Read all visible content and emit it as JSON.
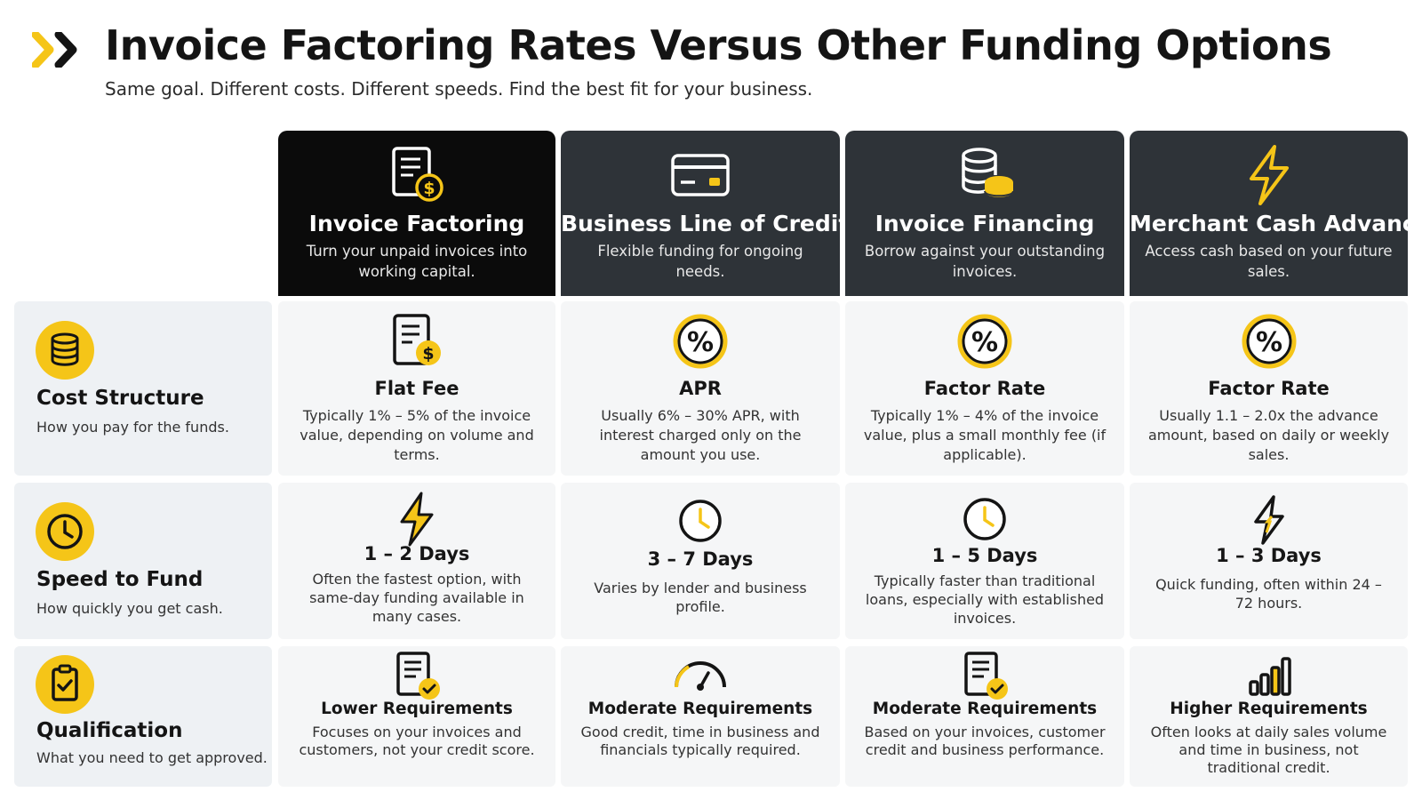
{
  "header": {
    "title": "Invoice Factoring Rates Versus Other Funding Options",
    "subtitle": "Same goal. Different costs. Different speeds. Find the best fit for your business."
  },
  "colors": {
    "accent": "#f5c518",
    "dark": "#2e3338",
    "black": "#0b0b0b",
    "cell": "#f5f6f7",
    "label": "#eef1f4"
  },
  "columns": [
    {
      "title": "Invoice Factoring",
      "desc": "Turn your unpaid invoices into working capital.",
      "icon": "invoice-dollar-icon"
    },
    {
      "title": "Business Line of Credit",
      "desc": "Flexible funding for ongoing needs.",
      "icon": "credit-card-icon"
    },
    {
      "title": "Invoice Financing",
      "desc": "Borrow against your outstanding invoices.",
      "icon": "coin-stack-icon"
    },
    {
      "title": "Merchant Cash Advance",
      "desc": "Access cash based on your future sales.",
      "icon": "lightning-icon"
    }
  ],
  "rows": [
    {
      "title": "Cost Structure",
      "desc": "How you pay for the funds.",
      "icon": "coins-icon",
      "cells": [
        {
          "title": "Flat Fee",
          "desc": "Typically 1% – 5% of the invoice value, depending on volume and terms.",
          "icon": "invoice-dollar-icon"
        },
        {
          "title": "APR",
          "desc": "Usually 6% – 30% APR, with interest charged only on the amount you use.",
          "icon": "percent-icon"
        },
        {
          "title": "Factor Rate",
          "desc": "Typically 1% – 4% of the invoice value, plus a small monthly fee (if applicable).",
          "icon": "percent-icon"
        },
        {
          "title": "Factor Rate",
          "desc": "Usually 1.1 – 2.0x the advance amount, based on daily or weekly sales.",
          "icon": "percent-icon"
        }
      ]
    },
    {
      "title": "Speed to Fund",
      "desc": "How quickly you get cash.",
      "icon": "clock-icon",
      "cells": [
        {
          "title": "1 – 2 Days",
          "desc": "Often the fastest option, with same-day funding available in many cases.",
          "icon": "lightning-icon"
        },
        {
          "title": "3 – 7 Days",
          "desc": "Varies by lender and business profile.",
          "icon": "clock-icon"
        },
        {
          "title": "1 – 5 Days",
          "desc": "Typically faster than traditional loans, especially with established invoices.",
          "icon": "clock-icon"
        },
        {
          "title": "1 – 3 Days",
          "desc": "Quick funding, often within 24 – 72 hours.",
          "icon": "lightning-icon"
        }
      ]
    },
    {
      "title": "Qualification",
      "desc": "What you need to get approved.",
      "icon": "clipboard-check-icon",
      "cells": [
        {
          "title": "Lower Requirements",
          "desc": "Focuses on your invoices and customers, not your credit score.",
          "icon": "document-check-icon"
        },
        {
          "title": "Moderate Requirements",
          "desc": "Good credit, time in business and financials typically required.",
          "icon": "gauge-icon"
        },
        {
          "title": "Moderate Requirements",
          "desc": "Based on your invoices, customer credit and business performance.",
          "icon": "document-check-icon"
        },
        {
          "title": "Higher Requirements",
          "desc": "Often looks at daily sales volume and time in business, not traditional credit.",
          "icon": "bar-chart-icon"
        }
      ]
    }
  ]
}
